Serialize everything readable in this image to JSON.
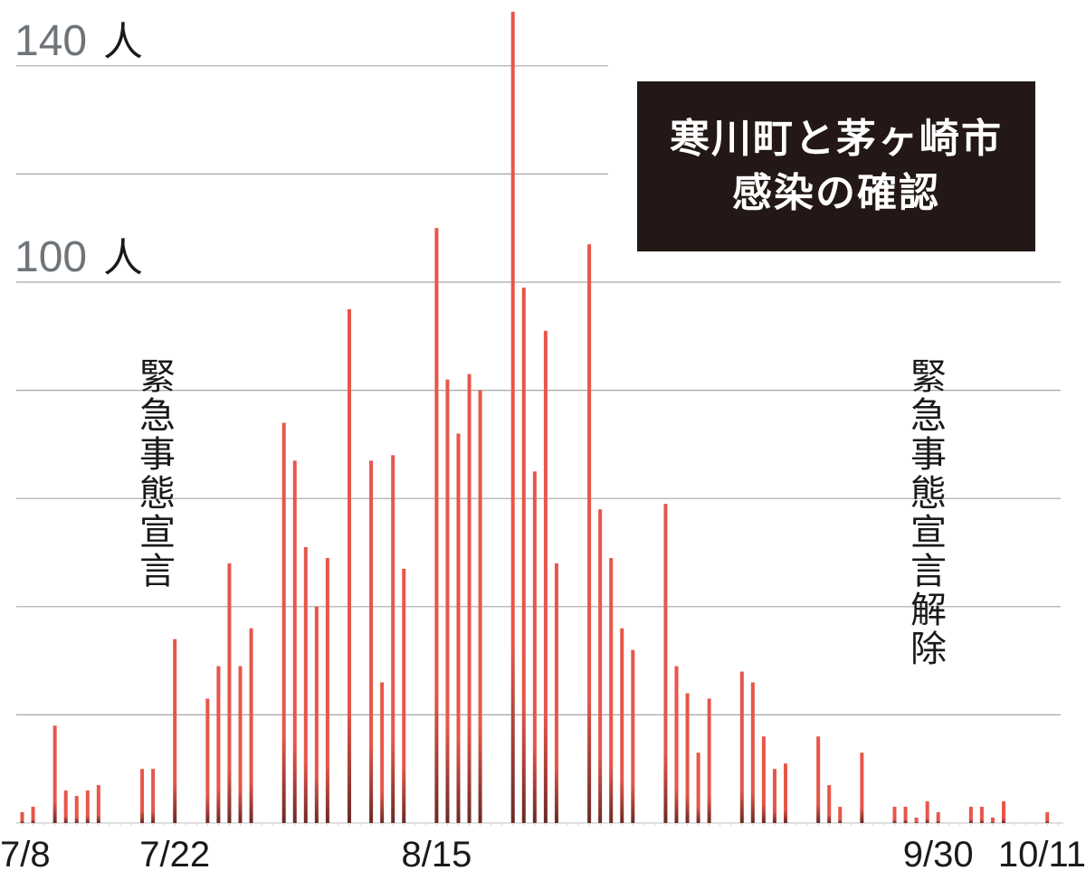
{
  "title": {
    "line1": "寒川町と茅ヶ崎市",
    "line2": "感染の確認"
  },
  "annotations": {
    "left": "緊急事態宣言",
    "right": "緊急事態宣言解除"
  },
  "colors": {
    "bar": "#e8564a",
    "bar_dark": "#6b2a25",
    "grid": "#a6a6a6",
    "title_bg": "#231815"
  },
  "chart_data": {
    "type": "bar",
    "x_start_date": "7/8",
    "x_end_date": "10/11",
    "ylim": [
      0,
      150
    ],
    "grid_step": 20,
    "grid": true,
    "y_labels": [
      {
        "value": 140,
        "num": "140",
        "unit": "人"
      },
      {
        "value": 100,
        "num": "100",
        "unit": "人"
      }
    ],
    "x_labels": [
      {
        "date": "7/8",
        "text": "7/8"
      },
      {
        "date": "7/22",
        "text": "7/22"
      },
      {
        "date": "8/15",
        "text": "8/15"
      },
      {
        "date": "9/30",
        "text": "9/30"
      },
      {
        "date": "10/11",
        "text": "10/11"
      }
    ],
    "series": [
      {
        "points": [
          {
            "date": "7/8",
            "value": 2
          },
          {
            "date": "7/9",
            "value": 3
          },
          {
            "date": "7/11",
            "value": 18
          },
          {
            "date": "7/12",
            "value": 6
          },
          {
            "date": "7/13",
            "value": 5
          },
          {
            "date": "7/14",
            "value": 6
          },
          {
            "date": "7/15",
            "value": 7
          },
          {
            "date": "7/19",
            "value": 10
          },
          {
            "date": "7/20",
            "value": 10
          },
          {
            "date": "7/22",
            "value": 34
          },
          {
            "date": "7/25",
            "value": 23
          },
          {
            "date": "7/26",
            "value": 29
          },
          {
            "date": "7/27",
            "value": 48
          },
          {
            "date": "7/28",
            "value": 29
          },
          {
            "date": "7/29",
            "value": 36
          },
          {
            "date": "8/1",
            "value": 74
          },
          {
            "date": "8/2",
            "value": 67
          },
          {
            "date": "8/3",
            "value": 51
          },
          {
            "date": "8/4",
            "value": 40
          },
          {
            "date": "8/5",
            "value": 49
          },
          {
            "date": "8/7",
            "value": 95
          },
          {
            "date": "8/9",
            "value": 67
          },
          {
            "date": "8/10",
            "value": 26
          },
          {
            "date": "8/11",
            "value": 68
          },
          {
            "date": "8/12",
            "value": 47
          },
          {
            "date": "8/15",
            "value": 110
          },
          {
            "date": "8/16",
            "value": 82
          },
          {
            "date": "8/17",
            "value": 72
          },
          {
            "date": "8/18",
            "value": 83
          },
          {
            "date": "8/19",
            "value": 80
          },
          {
            "date": "8/22",
            "value": 150
          },
          {
            "date": "8/23",
            "value": 99
          },
          {
            "date": "8/24",
            "value": 65
          },
          {
            "date": "8/25",
            "value": 91
          },
          {
            "date": "8/26",
            "value": 48
          },
          {
            "date": "8/29",
            "value": 107
          },
          {
            "date": "8/30",
            "value": 58
          },
          {
            "date": "8/31",
            "value": 49
          },
          {
            "date": "9/1",
            "value": 36
          },
          {
            "date": "9/2",
            "value": 32
          },
          {
            "date": "9/5",
            "value": 59
          },
          {
            "date": "9/6",
            "value": 29
          },
          {
            "date": "9/7",
            "value": 24
          },
          {
            "date": "9/8",
            "value": 13
          },
          {
            "date": "9/9",
            "value": 23
          },
          {
            "date": "9/12",
            "value": 28
          },
          {
            "date": "9/13",
            "value": 26
          },
          {
            "date": "9/14",
            "value": 16
          },
          {
            "date": "9/15",
            "value": 10
          },
          {
            "date": "9/16",
            "value": 11
          },
          {
            "date": "9/19",
            "value": 16
          },
          {
            "date": "9/20",
            "value": 7
          },
          {
            "date": "9/21",
            "value": 3
          },
          {
            "date": "9/23",
            "value": 13
          },
          {
            "date": "9/26",
            "value": 3
          },
          {
            "date": "9/27",
            "value": 3
          },
          {
            "date": "9/28",
            "value": 1
          },
          {
            "date": "9/29",
            "value": 4
          },
          {
            "date": "9/30",
            "value": 2
          },
          {
            "date": "10/3",
            "value": 3
          },
          {
            "date": "10/4",
            "value": 3
          },
          {
            "date": "10/5",
            "value": 1
          },
          {
            "date": "10/6",
            "value": 4
          },
          {
            "date": "10/10",
            "value": 2
          }
        ]
      }
    ]
  }
}
